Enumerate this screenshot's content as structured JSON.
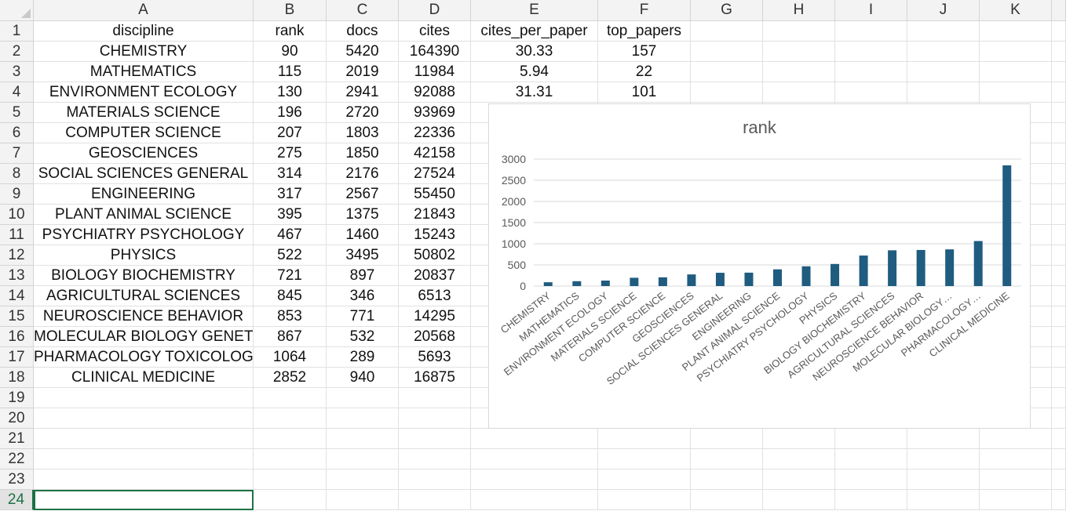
{
  "columns": [
    "A",
    "B",
    "C",
    "D",
    "E",
    "F",
    "G",
    "H",
    "I",
    "J",
    "K"
  ],
  "row_numbers": [
    1,
    2,
    3,
    4,
    5,
    6,
    7,
    8,
    9,
    10,
    11,
    12,
    13,
    14,
    15,
    16,
    17,
    18,
    19,
    20,
    21,
    22,
    23,
    24
  ],
  "active_row": 24,
  "headers": [
    "discipline",
    "rank",
    "docs",
    "cites",
    "cites_per_paper",
    "top_papers"
  ],
  "rows": [
    [
      "CHEMISTRY",
      "90",
      "5420",
      "164390",
      "30.33",
      "157"
    ],
    [
      "MATHEMATICS",
      "115",
      "2019",
      "11984",
      "5.94",
      "22"
    ],
    [
      "ENVIRONMENT ECOLOGY",
      "130",
      "2941",
      "92088",
      "31.31",
      "101"
    ],
    [
      "MATERIALS SCIENCE",
      "196",
      "2720",
      "93969",
      "",
      ""
    ],
    [
      "COMPUTER SCIENCE",
      "207",
      "1803",
      "22336",
      "",
      ""
    ],
    [
      "GEOSCIENCES",
      "275",
      "1850",
      "42158",
      "",
      ""
    ],
    [
      "SOCIAL SCIENCES  GENERAL",
      "314",
      "2176",
      "27524",
      "",
      ""
    ],
    [
      "ENGINEERING",
      "317",
      "2567",
      "55450",
      "",
      ""
    ],
    [
      "PLANT   ANIMAL SCIENCE",
      "395",
      "1375",
      "21843",
      "",
      ""
    ],
    [
      "PSYCHIATRY PSYCHOLOGY",
      "467",
      "1460",
      "15243",
      "",
      ""
    ],
    [
      "PHYSICS",
      "522",
      "3495",
      "50802",
      "",
      ""
    ],
    [
      "BIOLOGY   BIOCHEMISTRY",
      "721",
      "897",
      "20837",
      "",
      ""
    ],
    [
      "AGRICULTURAL SCIENCES",
      "845",
      "346",
      "6513",
      "",
      ""
    ],
    [
      "NEUROSCIENCE   BEHAVIOR",
      "853",
      "771",
      "14295",
      "",
      ""
    ],
    [
      "MOLECULAR BIOLOGY   GENETICS",
      "867",
      "532",
      "20568",
      "",
      ""
    ],
    [
      "PHARMACOLOGY   TOXICOLOGY",
      "1064",
      "289",
      "5693",
      "",
      ""
    ],
    [
      "CLINICAL MEDICINE",
      "2852",
      "940",
      "16875",
      "",
      ""
    ]
  ],
  "chart_data": {
    "type": "bar",
    "title": "rank",
    "categories": [
      "CHEMISTRY",
      "MATHEMATICS",
      "ENVIRONMENT ECOLOGY",
      "MATERIALS SCIENCE",
      "COMPUTER SCIENCE",
      "GEOSCIENCES",
      "SOCIAL SCIENCES  GENERAL",
      "ENGINEERING",
      "PLANT  ANIMAL SCIENCE",
      "PSYCHIATRY PSYCHOLOGY",
      "PHYSICS",
      "BIOLOGY  BIOCHEMISTRY",
      "AGRICULTURAL SCIENCES",
      "NEUROSCIENCE  BEHAVIOR",
      "MOLECULAR BIOLOGY…",
      "PHARMACOLOGY…",
      "CLINICAL MEDICINE"
    ],
    "values": [
      90,
      115,
      130,
      196,
      207,
      275,
      314,
      317,
      395,
      467,
      522,
      721,
      845,
      853,
      867,
      1064,
      2852
    ],
    "ylim": [
      0,
      3000
    ],
    "yticks": [
      0,
      500,
      1000,
      1500,
      2000,
      2500,
      3000
    ],
    "xlabel": "",
    "ylabel": "",
    "grid": true,
    "legend": "none",
    "bar_color": "#1f5c80"
  },
  "colors": {
    "header_bg": "#f3f3f3",
    "grid_line": "#e1e1e1",
    "active_accent": "#1e7145"
  }
}
